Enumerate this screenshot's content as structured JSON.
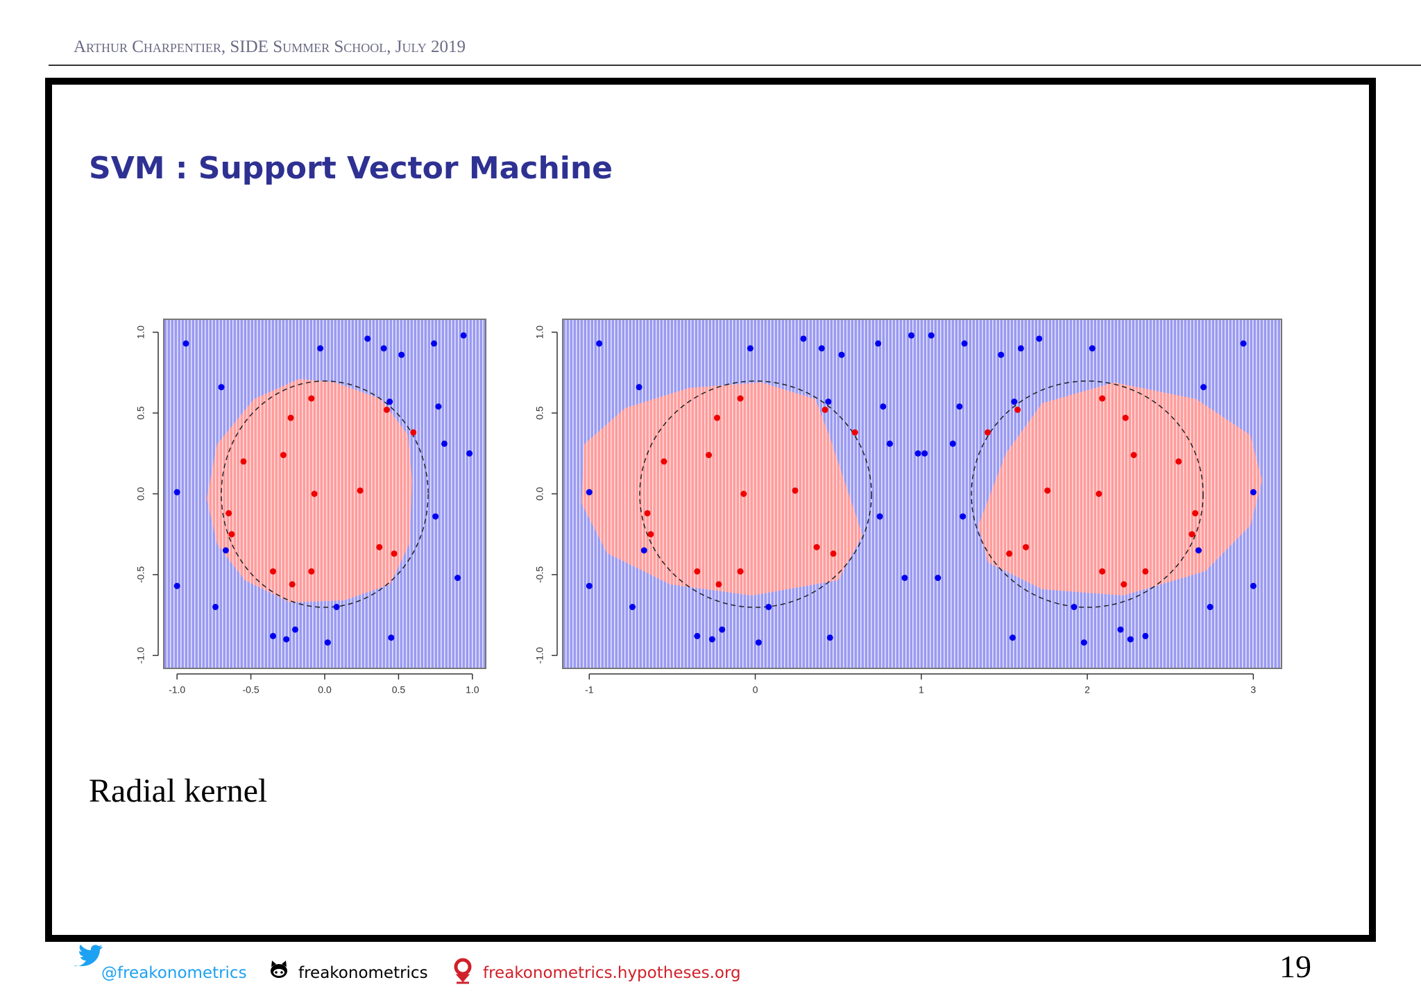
{
  "header": "Arthur Charpentier, SIDE Summer School, July 2019",
  "title": "SVM : Support Vector Machine",
  "caption": "Radial kernel",
  "footer": {
    "twitter": "@freakonometrics",
    "github": "freakonometrics",
    "blog": "freakonometrics.hypotheses.org",
    "page": 19
  },
  "chart_data": [
    {
      "type": "scatter",
      "xlim": [
        -1.09,
        1.09
      ],
      "ylim": [
        -1.08,
        1.08
      ],
      "xticks": [
        {
          "value": -1,
          "label": "-1.0"
        },
        -0.5,
        {
          "value": 0,
          "label": "0.0"
        },
        0.5,
        {
          "value": 1,
          "label": "1.0"
        }
      ],
      "yticks": [
        {
          "value": -1,
          "label": "-1.0"
        },
        -0.5,
        {
          "value": 0,
          "label": "0.0"
        },
        0.5,
        {
          "value": 1,
          "label": "1.0"
        }
      ],
      "series": [
        {
          "color": "#0000ee",
          "x": [
            -0.94,
            -0.7,
            -1.0,
            -1.0,
            -0.67,
            -0.74,
            -0.35,
            -0.26,
            -0.2,
            0.02,
            0.08,
            -0.03,
            0.29,
            0.4,
            0.52,
            0.44,
            0.74,
            0.94,
            0.77,
            0.81,
            0.98,
            0.75,
            0.9,
            0.45
          ],
          "values": [
            0.93,
            0.66,
            0.01,
            -0.57,
            -0.35,
            -0.7,
            -0.88,
            -0.9,
            -0.84,
            -0.92,
            -0.7,
            0.9,
            0.96,
            0.9,
            0.86,
            0.57,
            0.93,
            0.98,
            0.54,
            0.31,
            0.25,
            -0.14,
            -0.52,
            -0.89
          ]
        },
        {
          "color": "#ee0000",
          "x": [
            -0.09,
            -0.23,
            -0.55,
            -0.28,
            -0.07,
            0.24,
            0.42,
            0.6,
            -0.65,
            -0.63,
            -0.35,
            -0.09,
            -0.22,
            0.37,
            0.47
          ],
          "values": [
            0.59,
            0.47,
            0.2,
            0.24,
            0.0,
            0.02,
            0.52,
            0.38,
            -0.12,
            -0.25,
            -0.48,
            -0.48,
            -0.56,
            -0.33,
            -0.37
          ]
        }
      ]
    },
    {
      "type": "scatter",
      "xlim": [
        -1.16,
        3.17
      ],
      "ylim": [
        -1.08,
        1.08
      ],
      "xticks": [
        -1,
        0,
        1,
        2,
        3
      ],
      "yticks": [
        {
          "value": -1,
          "label": "-1.0"
        },
        -0.5,
        {
          "value": 0,
          "label": "0.0"
        },
        0.5,
        {
          "value": 1,
          "label": "1.0"
        }
      ],
      "series": [
        {
          "color": "#0000ee",
          "x": [
            -0.94,
            -0.7,
            -1.0,
            -1.0,
            -0.67,
            -0.74,
            -0.35,
            -0.26,
            -0.2,
            0.02,
            0.08,
            -0.03,
            0.29,
            0.4,
            0.52,
            0.44,
            0.74,
            0.94,
            0.77,
            0.81,
            0.98,
            0.75,
            0.9,
            0.45,
            2.94,
            2.7,
            3.0,
            3.0,
            2.67,
            2.74,
            2.35,
            2.26,
            2.2,
            1.98,
            1.92,
            2.03,
            1.71,
            1.6,
            1.48,
            1.56,
            1.26,
            1.06,
            1.23,
            1.19,
            1.02,
            1.25,
            1.1,
            1.55
          ],
          "values": [
            0.93,
            0.66,
            0.01,
            -0.57,
            -0.35,
            -0.7,
            -0.88,
            -0.9,
            -0.84,
            -0.92,
            -0.7,
            0.9,
            0.96,
            0.9,
            0.86,
            0.57,
            0.93,
            0.98,
            0.54,
            0.31,
            0.25,
            -0.14,
            -0.52,
            -0.89,
            0.93,
            0.66,
            0.01,
            -0.57,
            -0.35,
            -0.7,
            -0.88,
            -0.9,
            -0.84,
            -0.92,
            -0.7,
            0.9,
            0.96,
            0.9,
            0.86,
            0.57,
            0.93,
            0.98,
            0.54,
            0.31,
            0.25,
            -0.14,
            -0.52,
            -0.89
          ]
        },
        {
          "color": "#ee0000",
          "x": [
            -0.09,
            -0.23,
            -0.55,
            -0.28,
            -0.07,
            0.24,
            0.42,
            0.6,
            -0.65,
            -0.63,
            -0.35,
            -0.09,
            -0.22,
            0.37,
            0.47,
            2.09,
            2.23,
            2.55,
            2.28,
            2.07,
            1.76,
            1.58,
            1.4,
            2.65,
            2.63,
            2.35,
            2.09,
            2.22,
            1.63,
            1.53
          ],
          "values": [
            0.59,
            0.47,
            0.2,
            0.24,
            0.0,
            0.02,
            0.52,
            0.38,
            -0.12,
            -0.25,
            -0.48,
            -0.48,
            -0.56,
            -0.33,
            -0.37,
            0.59,
            0.47,
            0.2,
            0.24,
            0.0,
            0.02,
            0.52,
            0.38,
            -0.12,
            -0.25,
            -0.48,
            -0.48,
            -0.56,
            -0.33,
            -0.37
          ]
        }
      ]
    }
  ]
}
